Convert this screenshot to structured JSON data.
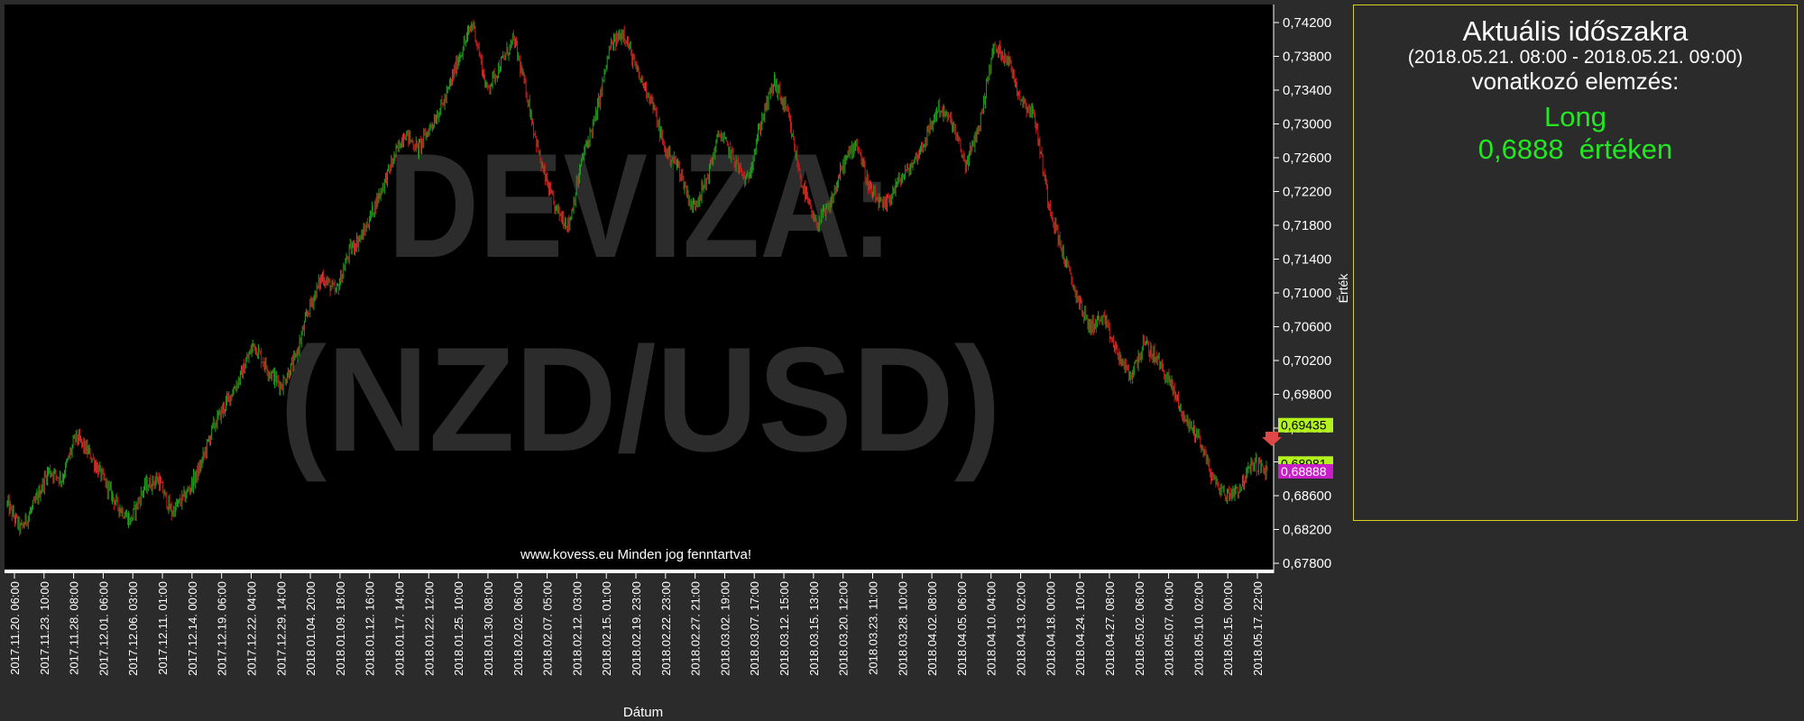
{
  "chart_data": {
    "type": "candlestick",
    "watermark": [
      "DEVIZA:",
      "(NZD/USD)"
    ],
    "copyright": "www.kovess.eu Minden jog fenntartva!",
    "xlabel": "Dátum",
    "ylabel": "Érték",
    "ylim": [
      0.677,
      0.743
    ],
    "y_ticks": [
      "0,74200",
      "0,73800",
      "0,73400",
      "0,73000",
      "0,72600",
      "0,72200",
      "0,71800",
      "0,71400",
      "0,71000",
      "0,70600",
      "0,70200",
      "0,69800",
      "0,69400",
      "0,69000",
      "0,68600",
      "0,68200",
      "0,67800"
    ],
    "y_tick_values": [
      0.742,
      0.738,
      0.734,
      0.73,
      0.726,
      0.722,
      0.718,
      0.714,
      0.71,
      0.706,
      0.702,
      0.698,
      0.694,
      0.69,
      0.686,
      0.682,
      0.678
    ],
    "x_ticks": [
      "2017.11.20. 06:00",
      "2017.11.23. 10:00",
      "2017.11.28. 08:00",
      "2017.12.01. 06:00",
      "2017.12.06. 03:00",
      "2017.12.11. 01:00",
      "2017.12.14. 00:00",
      "2017.12.19. 06:00",
      "2017.12.22. 04:00",
      "2017.12.29. 14:00",
      "2018.01.04. 20:00",
      "2018.01.09. 18:00",
      "2018.01.12. 16:00",
      "2018.01.17. 14:00",
      "2018.01.22. 12:00",
      "2018.01.25. 10:00",
      "2018.01.30. 08:00",
      "2018.02.02. 06:00",
      "2018.02.07. 05:00",
      "2018.02.12. 03:00",
      "2018.02.15. 01:00",
      "2018.02.19. 23:00",
      "2018.02.22. 23:00",
      "2018.02.27. 21:00",
      "2018.03.02. 19:00",
      "2018.03.07. 17:00",
      "2018.03.12. 15:00",
      "2018.03.15. 13:00",
      "2018.03.20. 12:00",
      "2018.03.23. 11:00",
      "2018.03.28. 10:00",
      "2018.04.02. 08:00",
      "2018.04.05. 06:00",
      "2018.04.10. 04:00",
      "2018.04.13. 02:00",
      "2018.04.18. 00:00",
      "2018.04.24. 10:00",
      "2018.04.27. 08:00",
      "2018.05.02. 06:00",
      "2018.05.07. 04:00",
      "2018.05.10. 02:00",
      "2018.05.15. 00:00",
      "2018.05.17. 22:00"
    ],
    "price_path": [
      0.685,
      0.682,
      0.685,
      0.689,
      0.688,
      0.693,
      0.691,
      0.688,
      0.685,
      0.683,
      0.687,
      0.688,
      0.684,
      0.686,
      0.689,
      0.694,
      0.697,
      0.7,
      0.704,
      0.701,
      0.699,
      0.702,
      0.708,
      0.712,
      0.71,
      0.715,
      0.717,
      0.721,
      0.725,
      0.729,
      0.727,
      0.73,
      0.733,
      0.738,
      0.742,
      0.734,
      0.737,
      0.74,
      0.733,
      0.725,
      0.72,
      0.718,
      0.726,
      0.731,
      0.739,
      0.741,
      0.736,
      0.733,
      0.727,
      0.725,
      0.72,
      0.723,
      0.729,
      0.726,
      0.723,
      0.73,
      0.735,
      0.731,
      0.723,
      0.718,
      0.72,
      0.725,
      0.728,
      0.722,
      0.72,
      0.723,
      0.725,
      0.728,
      0.732,
      0.73,
      0.725,
      0.73,
      0.739,
      0.738,
      0.733,
      0.731,
      0.721,
      0.715,
      0.71,
      0.706,
      0.707,
      0.703,
      0.7,
      0.704,
      0.702,
      0.699,
      0.695,
      0.693,
      0.688,
      0.686,
      0.687,
      0.69,
      0.6888
    ],
    "last_values": [
      {
        "label": "0,69435",
        "value": 0.69435,
        "color": "#b4f21e"
      },
      {
        "label": "0,68981",
        "value": 0.68981,
        "color": "#b4f21e"
      },
      {
        "label": "0,68888",
        "value": 0.68888,
        "color": "#c81ec8"
      }
    ],
    "colors": {
      "up": "#1e9e1e",
      "down": "#c81e1e",
      "background": "#000000",
      "frame": "#2b2b2b",
      "watermark": "#2c2c2c"
    }
  },
  "analysis": {
    "title": "Aktuális időszakra",
    "period": "(2018.05.21. 08:00 - 2018.05.21. 09:00)",
    "subtitle": "vonatkozó elemzés:",
    "signal": "Long",
    "value_line": "0,6888  értéken",
    "color": "#22e822"
  }
}
